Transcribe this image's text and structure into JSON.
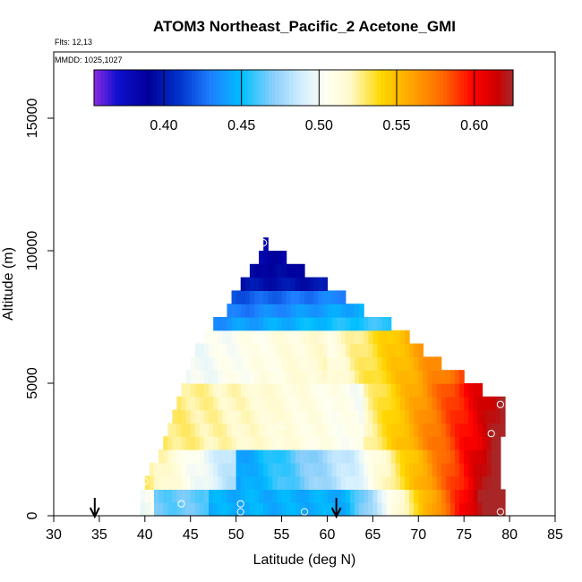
{
  "chart_data": {
    "type": "heatmap",
    "title": "ATOM3 Northeast_Pacific_2 Acetone_GMI",
    "annotations": [
      "Flts: 12,13",
      "MMDD: 1025,1027"
    ],
    "xlabel": "Latitude (deg N)",
    "ylabel": "Altitude (m)",
    "xlim": [
      30,
      85
    ],
    "ylim": [
      0,
      17500
    ],
    "x_ticks": [
      30,
      35,
      40,
      45,
      50,
      55,
      60,
      65,
      70,
      75,
      80,
      85
    ],
    "y_ticks": [
      0,
      5000,
      10000,
      15000
    ],
    "grid": false,
    "colorbar": {
      "placement": "top",
      "range": [
        0.355,
        0.625
      ],
      "ticks": [
        0.4,
        0.45,
        0.5,
        0.55,
        0.6
      ],
      "tick_labels": [
        "0.40",
        "0.45",
        "0.50",
        "0.55",
        "0.60"
      ],
      "stops": [
        [
          0.355,
          "#8a2be2"
        ],
        [
          0.37,
          "#1010d0"
        ],
        [
          0.39,
          "#000099"
        ],
        [
          0.41,
          "#0033cc"
        ],
        [
          0.43,
          "#1e7fff"
        ],
        [
          0.45,
          "#00bfff"
        ],
        [
          0.47,
          "#87cefa"
        ],
        [
          0.49,
          "#d6f0ff"
        ],
        [
          0.505,
          "#fffff0"
        ],
        [
          0.52,
          "#fffacd"
        ],
        [
          0.54,
          "#ffd700"
        ],
        [
          0.56,
          "#ffa500"
        ],
        [
          0.58,
          "#ff6600"
        ],
        [
          0.6,
          "#ff0000"
        ],
        [
          0.615,
          "#cc0000"
        ],
        [
          0.625,
          "#a52a2a"
        ]
      ]
    },
    "lat_bins": [
      39.5,
      79.5
    ],
    "alt_bins": [
      0,
      10500
    ],
    "value_field": {
      "coverage": [
        {
          "alt": 250,
          "lat_min": 39.5,
          "lat_max": 79.5
        },
        {
          "alt": 750,
          "lat_min": 39.5,
          "lat_max": 79.5
        },
        {
          "alt": 1250,
          "lat_min": 40,
          "lat_max": 79
        },
        {
          "alt": 1750,
          "lat_min": 40.5,
          "lat_max": 79
        },
        {
          "alt": 2250,
          "lat_min": 41.5,
          "lat_max": 79
        },
        {
          "alt": 2750,
          "lat_min": 42,
          "lat_max": 79
        },
        {
          "alt": 3250,
          "lat_min": 42.5,
          "lat_max": 79.5
        },
        {
          "alt": 3750,
          "lat_min": 43,
          "lat_max": 79.5
        },
        {
          "alt": 4250,
          "lat_min": 43.5,
          "lat_max": 79.5
        },
        {
          "alt": 4750,
          "lat_min": 44,
          "lat_max": 77
        },
        {
          "alt": 5250,
          "lat_min": 44.5,
          "lat_max": 75
        },
        {
          "alt": 5750,
          "lat_min": 45,
          "lat_max": 72.5
        },
        {
          "alt": 6250,
          "lat_min": 45.5,
          "lat_max": 70.5
        },
        {
          "alt": 6750,
          "lat_min": 46.5,
          "lat_max": 69
        },
        {
          "alt": 7250,
          "lat_min": 47.5,
          "lat_max": 67
        },
        {
          "alt": 7750,
          "lat_min": 49,
          "lat_max": 64
        },
        {
          "alt": 8250,
          "lat_min": 49.5,
          "lat_max": 62
        },
        {
          "alt": 8750,
          "lat_min": 50.5,
          "lat_max": 60
        },
        {
          "alt": 9250,
          "lat_min": 51.5,
          "lat_max": 57.5
        },
        {
          "alt": 9750,
          "lat_min": 52.5,
          "lat_max": 55.5
        },
        {
          "alt": 10250,
          "lat_min": 53,
          "lat_max": 53.5
        }
      ]
    },
    "flight_points": [
      {
        "lat": 40,
        "alt": 1300
      },
      {
        "lat": 44,
        "alt": 450
      },
      {
        "lat": 50.5,
        "alt": 450
      },
      {
        "lat": 50.5,
        "alt": 150
      },
      {
        "lat": 51.5,
        "alt": 6200
      },
      {
        "lat": 53,
        "alt": 10300
      },
      {
        "lat": 55,
        "alt": 3400
      },
      {
        "lat": 57.5,
        "alt": 150
      },
      {
        "lat": 78,
        "alt": 3100
      },
      {
        "lat": 79,
        "alt": 4200
      },
      {
        "lat": 79,
        "alt": 150
      }
    ],
    "arrows": [
      {
        "lat": 34.5
      },
      {
        "lat": 61
      }
    ]
  }
}
